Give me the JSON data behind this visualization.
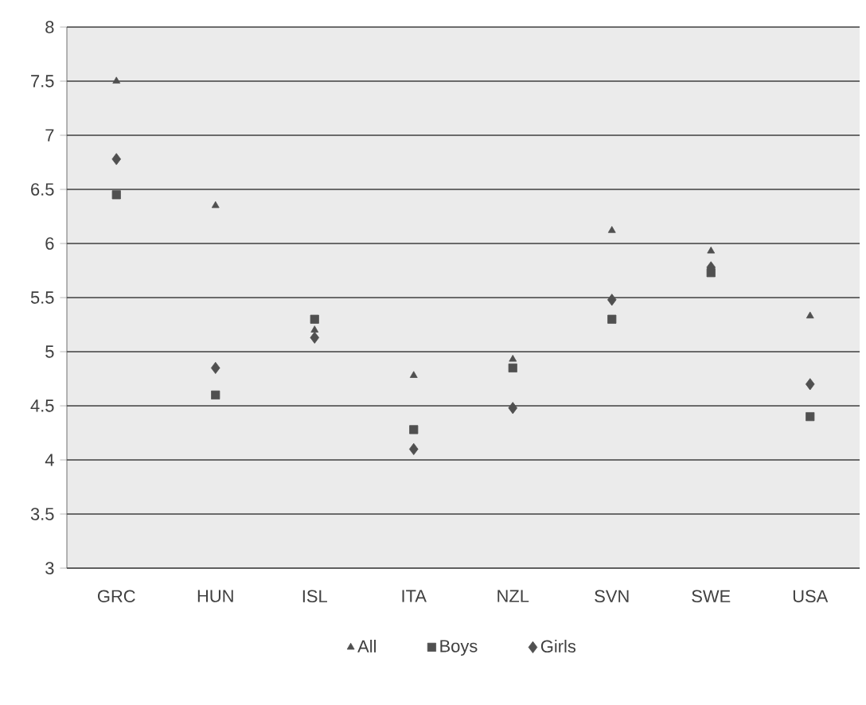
{
  "chart_data": {
    "type": "scatter",
    "categories": [
      "GRC",
      "HUN",
      "ISL",
      "ITA",
      "NZL",
      "SVN",
      "SWE",
      "USA"
    ],
    "series": [
      {
        "name": "All",
        "color": "#505050",
        "marker": "triangle",
        "values": [
          7.5,
          6.35,
          5.2,
          4.78,
          4.93,
          6.12,
          5.93,
          5.33
        ]
      },
      {
        "name": "Boys",
        "color": "#505050",
        "marker": "square",
        "values": [
          6.45,
          4.6,
          5.3,
          4.28,
          4.85,
          5.3,
          5.73,
          4.4
        ]
      },
      {
        "name": "Girls",
        "color": "#505050",
        "marker": "diamond",
        "values": [
          6.78,
          4.85,
          5.13,
          4.1,
          4.48,
          5.48,
          5.78,
          4.7
        ]
      }
    ],
    "ylim": [
      3,
      8
    ],
    "yticks": [
      3,
      3.5,
      4,
      4.5,
      5,
      5.5,
      6,
      6.5,
      7,
      7.5,
      8
    ],
    "grid": "y",
    "legend": "bottom"
  }
}
